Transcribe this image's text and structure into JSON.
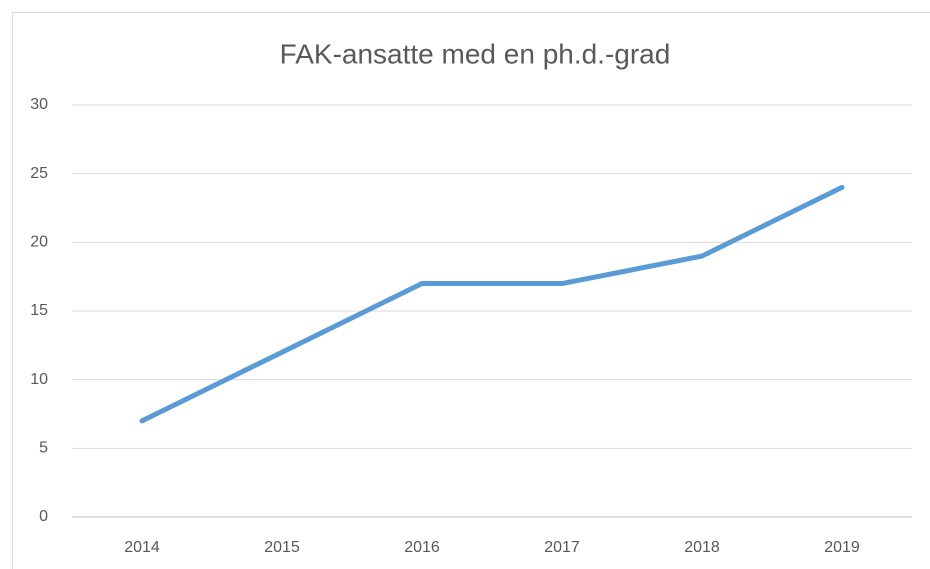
{
  "chart_data": {
    "type": "line",
    "title": "FAK-ansatte med en ph.d.-grad",
    "categories": [
      "2014",
      "2015",
      "2016",
      "2017",
      "2018",
      "2019"
    ],
    "values": [
      7,
      12,
      17,
      17,
      19,
      24
    ],
    "color": "#5b9bd5",
    "ylim": [
      0,
      30
    ],
    "yticks": [
      0,
      5,
      10,
      15,
      20,
      25,
      30
    ],
    "grid": true
  }
}
